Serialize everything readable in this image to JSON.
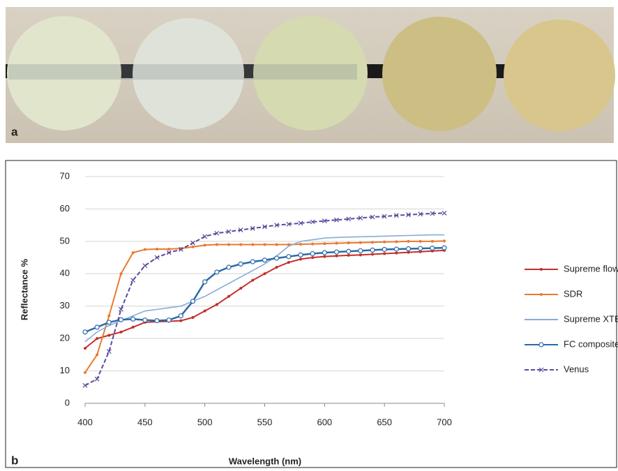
{
  "photo": {
    "label": "a"
  },
  "chart_data": {
    "type": "line",
    "panel_label": "b",
    "xlabel": "Wavelength (nm)",
    "ylabel": "Reflectance %",
    "x": [
      400,
      410,
      420,
      430,
      440,
      450,
      460,
      470,
      480,
      490,
      500,
      510,
      520,
      530,
      540,
      550,
      560,
      570,
      580,
      590,
      600,
      610,
      620,
      630,
      640,
      650,
      660,
      670,
      680,
      690,
      700
    ],
    "xlim": [
      400,
      700
    ],
    "xticks": [
      400,
      450,
      500,
      550,
      600,
      650,
      700
    ],
    "ylim": [
      0,
      70
    ],
    "yticks": [
      0,
      10,
      20,
      30,
      40,
      50,
      60,
      70
    ],
    "grid": true,
    "legend": "right",
    "series": [
      {
        "name": "Supreme flow XT",
        "color": "#c22f2a",
        "marker": "dot",
        "dash": false,
        "values": [
          17,
          20,
          21,
          22,
          23.5,
          25,
          25.2,
          25.3,
          25.5,
          26.5,
          28.5,
          30.5,
          33,
          35.5,
          38,
          40,
          42,
          43.5,
          44.5,
          45,
          45.3,
          45.5,
          45.7,
          45.8,
          46,
          46.2,
          46.4,
          46.6,
          46.8,
          47,
          47.2
        ]
      },
      {
        "name": "SDR",
        "color": "#e87a30",
        "marker": "dot",
        "dash": false,
        "values": [
          9.5,
          15,
          27,
          40,
          46.5,
          47.5,
          47.6,
          47.6,
          47.8,
          48.3,
          48.8,
          49,
          49,
          49,
          49,
          49,
          49,
          49,
          49.1,
          49.2,
          49.3,
          49.4,
          49.5,
          49.6,
          49.7,
          49.8,
          49.9,
          50,
          50,
          50,
          50.1
        ]
      },
      {
        "name": "Supreme XTE",
        "color": "#86acd9",
        "marker": null,
        "dash": false,
        "values": [
          19,
          22,
          24,
          25.5,
          27,
          28.5,
          29,
          29.5,
          30,
          31.5,
          33,
          35,
          37,
          39,
          41,
          43,
          45.5,
          48.5,
          50,
          50.5,
          51,
          51.2,
          51.3,
          51.4,
          51.5,
          51.6,
          51.7,
          51.8,
          51.9,
          52,
          52
        ]
      },
      {
        "name": "FC composite",
        "color": "#2a6aa8",
        "marker": "circle",
        "dash": false,
        "values": [
          22,
          23.5,
          25,
          25.8,
          26,
          25.7,
          25.5,
          25.7,
          27,
          31.5,
          37.5,
          40.5,
          42,
          43,
          43.7,
          44.2,
          44.8,
          45.3,
          45.8,
          46.2,
          46.5,
          46.7,
          46.9,
          47.1,
          47.3,
          47.5,
          47.6,
          47.7,
          47.8,
          47.9,
          48
        ]
      },
      {
        "name": "Venus",
        "color": "#5b4c9c",
        "marker": "x",
        "dash": true,
        "values": [
          5.5,
          7.5,
          16,
          29,
          38,
          42.5,
          45,
          46.5,
          47.5,
          49.5,
          51.5,
          52.5,
          53,
          53.5,
          54,
          54.5,
          55,
          55.3,
          55.6,
          56,
          56.3,
          56.6,
          56.9,
          57.2,
          57.5,
          57.7,
          58,
          58.2,
          58.4,
          58.6,
          58.7
        ]
      }
    ]
  }
}
